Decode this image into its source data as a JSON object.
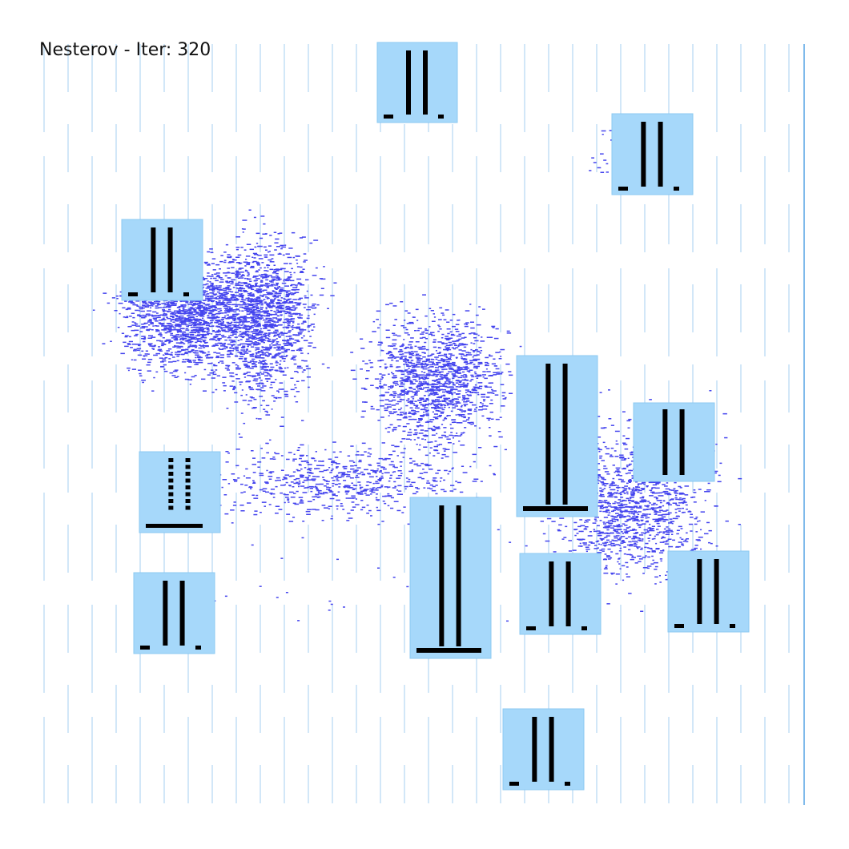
{
  "title": "Nesterov - Iter: 320",
  "colors": {
    "background": "#ffffff",
    "grid_line": "#8ec4ee",
    "grid_edge": "#5fa8e6",
    "cell_fill": "#a6d8fa",
    "cell_border": "#8ccaf2",
    "pin_bar": "#000000",
    "point": "#4545ee"
  },
  "cells": [
    {
      "id": "cell-top-center",
      "variant": "tall-pair"
    },
    {
      "id": "cell-top-right",
      "variant": "tall-pair"
    },
    {
      "id": "cell-upper-left",
      "variant": "tall-pair"
    },
    {
      "id": "cell-mid-right",
      "variant": "tall-pair-base"
    },
    {
      "id": "cell-right",
      "variant": "dashed-pair"
    },
    {
      "id": "cell-left",
      "variant": "dashed-base"
    },
    {
      "id": "cell-lower-left",
      "variant": "tall-pair"
    },
    {
      "id": "cell-center-tall",
      "variant": "tall-pair-base"
    },
    {
      "id": "cell-lower-mid",
      "variant": "tall-pair"
    },
    {
      "id": "cell-lower-right",
      "variant": "tall-pair"
    },
    {
      "id": "cell-bottom",
      "variant": "tall-pair"
    }
  ],
  "clusters": [
    {
      "id": "cluster-upper-left-a",
      "density": 1.0
    },
    {
      "id": "cluster-upper-left-b",
      "density": 1.0
    },
    {
      "id": "cluster-center",
      "density": 0.9
    },
    {
      "id": "cluster-right",
      "density": 0.9
    },
    {
      "id": "cluster-bridge",
      "density": 0.5
    },
    {
      "id": "cluster-top-right",
      "density": 0.3
    }
  ]
}
